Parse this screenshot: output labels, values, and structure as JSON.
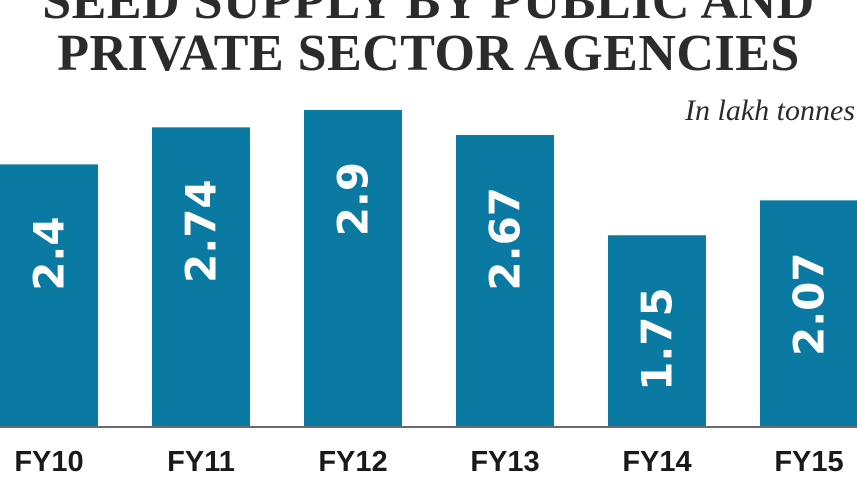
{
  "chart_data": {
    "type": "bar",
    "title_lines": [
      "SEED SUPPLY BY PUBLIC AND",
      "PRIVATE SECTOR AGENCIES"
    ],
    "subtitle": "In lakh tonnes",
    "categories": [
      "FY10",
      "FY11",
      "FY12",
      "FY13",
      "FY14",
      "FY15"
    ],
    "values": [
      2.4,
      2.74,
      2.9,
      2.67,
      1.75,
      2.07
    ],
    "value_labels": [
      "2.4",
      "2.74",
      "2.9",
      "2.67",
      "1.75",
      "2.07"
    ],
    "xlabel": "",
    "ylabel": "",
    "ylim": [
      0,
      3.6
    ],
    "grid": false,
    "bar_color": "#0a7aa2",
    "baseline_color": "#6a6a6a"
  }
}
